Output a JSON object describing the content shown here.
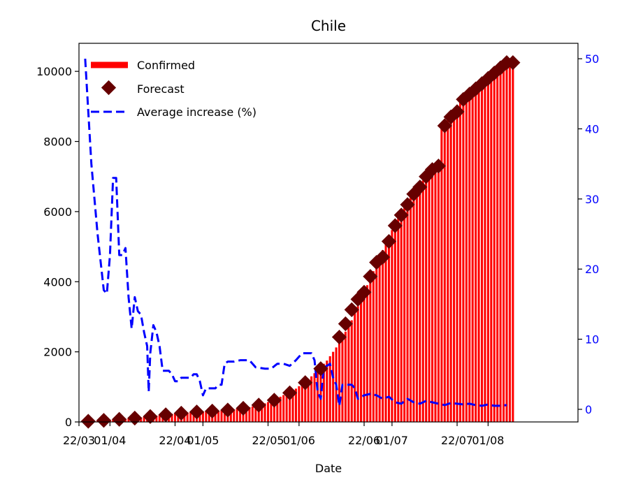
{
  "chart_data": {
    "type": "bar",
    "title": "Chile",
    "xlabel": "Date",
    "ylabel": "",
    "ylim": [
      0,
      10800
    ],
    "y2lim": [
      -1.8,
      52.2
    ],
    "yticks": [
      0,
      2000,
      4000,
      6000,
      8000,
      10000
    ],
    "y2ticks": [
      0,
      10,
      20,
      30,
      40,
      50
    ],
    "x_days": [
      0,
      161
    ],
    "xticks": [
      {
        "day": 0,
        "label": "22/03"
      },
      {
        "day": 10,
        "label": "01/04"
      },
      {
        "day": 31,
        "label": "22/04"
      },
      {
        "day": 40,
        "label": "01/05"
      },
      {
        "day": 61,
        "label": "22/05"
      },
      {
        "day": 71,
        "label": "01/06"
      },
      {
        "day": 92,
        "label": "22/06"
      },
      {
        "day": 101,
        "label": "01/07"
      },
      {
        "day": 122,
        "label": "22/07"
      },
      {
        "day": 132,
        "label": "01/08"
      }
    ],
    "legend": {
      "position": "top-left",
      "items": [
        "Confirmed",
        "Forecast",
        "Average increase (%)"
      ]
    },
    "colors": {
      "confirmed": "#ff0000",
      "forecast": "#660000",
      "average": "#0000ff",
      "right_axis": "#0000ff"
    },
    "confirmed_series": {
      "name": "Confirmed",
      "points": [
        [
          0,
          10
        ],
        [
          5,
          30
        ],
        [
          10,
          60
        ],
        [
          15,
          90
        ],
        [
          20,
          130
        ],
        [
          25,
          180
        ],
        [
          30,
          230
        ],
        [
          35,
          270
        ],
        [
          40,
          300
        ],
        [
          45,
          320
        ],
        [
          50,
          360
        ],
        [
          55,
          420
        ],
        [
          60,
          530
        ],
        [
          65,
          720
        ],
        [
          70,
          950
        ],
        [
          75,
          1300
        ],
        [
          80,
          1750
        ],
        [
          84,
          2250
        ],
        [
          88,
          2900
        ],
        [
          92,
          3700
        ],
        [
          96,
          4500
        ],
        [
          100,
          5300
        ],
        [
          104,
          6000
        ],
        [
          108,
          6550
        ],
        [
          112,
          7000
        ],
        [
          116,
          7400
        ],
        [
          117,
          8400
        ],
        [
          120,
          8800
        ],
        [
          124,
          9250
        ],
        [
          128,
          9550
        ],
        [
          132,
          9800
        ],
        [
          136,
          10050
        ],
        [
          140,
          10250
        ]
      ]
    },
    "forecast_series": {
      "name": "Forecast",
      "points": [
        [
          3,
          20
        ],
        [
          8,
          45
        ],
        [
          13,
          75
        ],
        [
          18,
          110
        ],
        [
          23,
          155
        ],
        [
          28,
          205
        ],
        [
          33,
          250
        ],
        [
          38,
          285
        ],
        [
          43,
          310
        ],
        [
          48,
          340
        ],
        [
          53,
          390
        ],
        [
          58,
          480
        ],
        [
          63,
          620
        ],
        [
          68,
          830
        ],
        [
          73,
          1120
        ],
        [
          78,
          1520
        ],
        [
          84,
          2420
        ],
        [
          86,
          2800
        ],
        [
          88,
          3200
        ],
        [
          90,
          3500
        ],
        [
          92,
          3700
        ],
        [
          94,
          4150
        ],
        [
          96,
          4550
        ],
        [
          98,
          4700
        ],
        [
          100,
          5150
        ],
        [
          102,
          5600
        ],
        [
          104,
          5900
        ],
        [
          106,
          6200
        ],
        [
          108,
          6500
        ],
        [
          110,
          6700
        ],
        [
          112,
          7000
        ],
        [
          114,
          7200
        ],
        [
          116,
          7300
        ],
        [
          118,
          8450
        ],
        [
          120,
          8700
        ],
        [
          122,
          8850
        ],
        [
          124,
          9200
        ],
        [
          126,
          9350
        ],
        [
          128,
          9500
        ],
        [
          130,
          9650
        ],
        [
          132,
          9800
        ],
        [
          134,
          9950
        ],
        [
          136,
          10100
        ],
        [
          138,
          10250
        ],
        [
          140,
          10250
        ]
      ]
    },
    "average_series": {
      "name": "Average increase (%)",
      "points": [
        [
          2,
          50
        ],
        [
          4,
          35
        ],
        [
          6,
          25
        ],
        [
          8,
          17
        ],
        [
          9,
          16.5
        ],
        [
          10,
          22
        ],
        [
          11,
          33
        ],
        [
          12,
          33
        ],
        [
          13,
          22
        ],
        [
          14,
          22
        ],
        [
          15,
          23
        ],
        [
          16,
          16
        ],
        [
          17,
          11.5
        ],
        [
          18,
          16
        ],
        [
          19,
          14
        ],
        [
          20,
          13.5
        ],
        [
          21,
          11
        ],
        [
          22,
          9
        ],
        [
          22.5,
          2.5
        ],
        [
          23,
          8
        ],
        [
          24,
          12
        ],
        [
          25,
          11
        ],
        [
          26,
          9
        ],
        [
          27,
          5.5
        ],
        [
          28,
          5.5
        ],
        [
          29,
          5.5
        ],
        [
          30,
          5
        ],
        [
          31,
          4
        ],
        [
          32,
          4
        ],
        [
          33,
          4.5
        ],
        [
          34,
          4.5
        ],
        [
          35,
          4.5
        ],
        [
          36,
          4.5
        ],
        [
          37,
          5
        ],
        [
          38,
          5
        ],
        [
          39,
          4
        ],
        [
          40,
          2
        ],
        [
          41,
          3
        ],
        [
          42,
          3
        ],
        [
          43,
          3
        ],
        [
          44,
          3
        ],
        [
          45,
          3.5
        ],
        [
          46,
          3.5
        ],
        [
          47,
          6.5
        ],
        [
          48,
          6.8
        ],
        [
          50,
          6.8
        ],
        [
          52,
          7
        ],
        [
          55,
          7
        ],
        [
          57,
          6
        ],
        [
          60,
          5.8
        ],
        [
          62,
          5.8
        ],
        [
          64,
          6.5
        ],
        [
          66,
          6.5
        ],
        [
          68,
          6.2
        ],
        [
          70,
          7
        ],
        [
          72,
          8
        ],
        [
          74,
          8
        ],
        [
          75,
          8
        ],
        [
          76,
          7
        ],
        [
          77,
          2.5
        ],
        [
          78,
          1.5
        ],
        [
          79,
          6
        ],
        [
          80,
          6.2
        ],
        [
          81,
          6.5
        ],
        [
          82,
          4.5
        ],
        [
          83,
          3.5
        ],
        [
          84,
          0.5
        ],
        [
          85,
          3.5
        ],
        [
          86,
          3.5
        ],
        [
          88,
          3.5
        ],
        [
          89,
          3
        ],
        [
          90,
          1.5
        ],
        [
          92,
          2
        ],
        [
          94,
          2.2
        ],
        [
          96,
          2
        ],
        [
          98,
          1.5
        ],
        [
          100,
          1.8
        ],
        [
          102,
          1
        ],
        [
          104,
          0.8
        ],
        [
          106,
          1.5
        ],
        [
          108,
          1
        ],
        [
          110,
          0.8
        ],
        [
          112,
          1.2
        ],
        [
          114,
          1
        ],
        [
          116,
          0.8
        ],
        [
          118,
          0.6
        ],
        [
          120,
          0.9
        ],
        [
          122,
          0.8
        ],
        [
          124,
          0.7
        ],
        [
          126,
          0.8
        ],
        [
          128,
          0.6
        ],
        [
          130,
          0.5
        ],
        [
          132,
          0.7
        ],
        [
          134,
          0.5
        ],
        [
          136,
          0.5
        ],
        [
          138,
          0.6
        ]
      ]
    }
  }
}
